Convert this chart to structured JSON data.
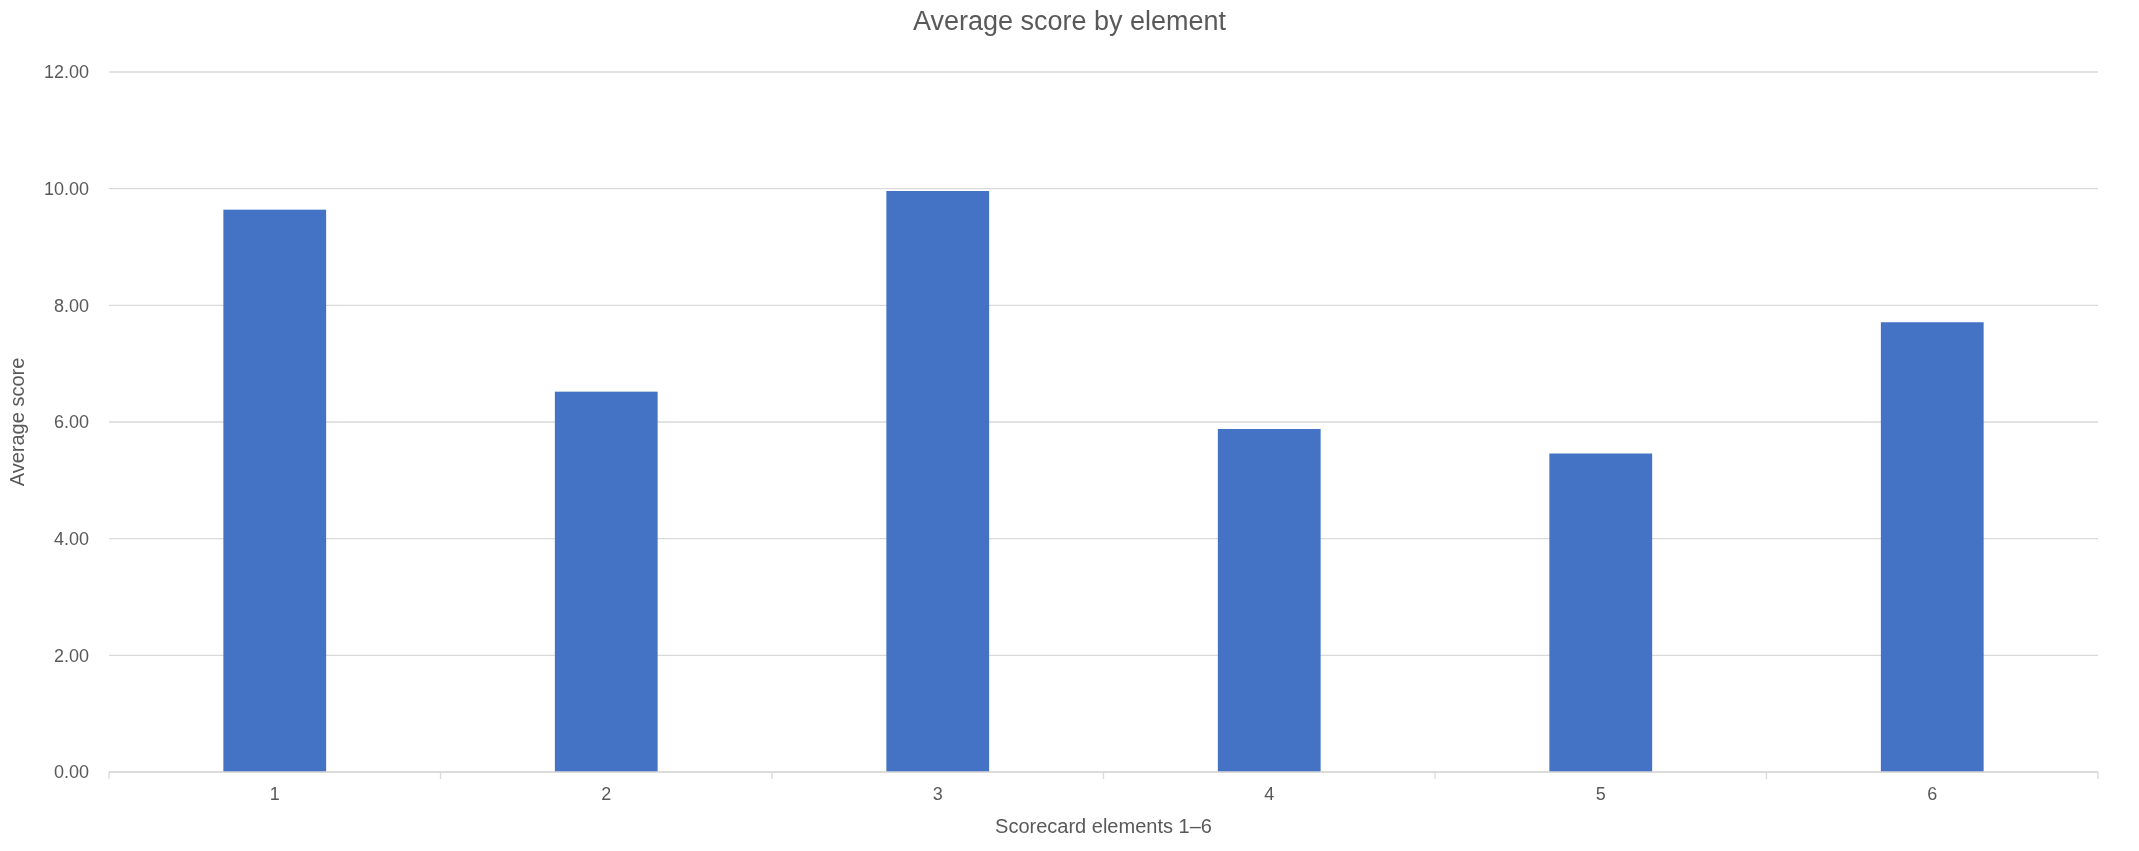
{
  "chart_data": {
    "type": "bar",
    "title": "Average score by element",
    "xlabel": "Scorecard elements 1–6",
    "ylabel": "Average score",
    "categories": [
      "1",
      "2",
      "3",
      "4",
      "5",
      "6"
    ],
    "values": [
      9.64,
      6.52,
      9.96,
      5.88,
      5.46,
      7.71
    ],
    "color": "#4472c4",
    "ylim": [
      0,
      12
    ],
    "yticks": [
      {
        "value": 0,
        "label": "0.00"
      },
      {
        "value": 2,
        "label": "2.00"
      },
      {
        "value": 4,
        "label": "4.00"
      },
      {
        "value": 6,
        "label": "6.00"
      },
      {
        "value": 8,
        "label": "8.00"
      },
      {
        "value": 10,
        "label": "10.00"
      },
      {
        "value": 12,
        "label": "12.00"
      }
    ],
    "grid": "y"
  }
}
